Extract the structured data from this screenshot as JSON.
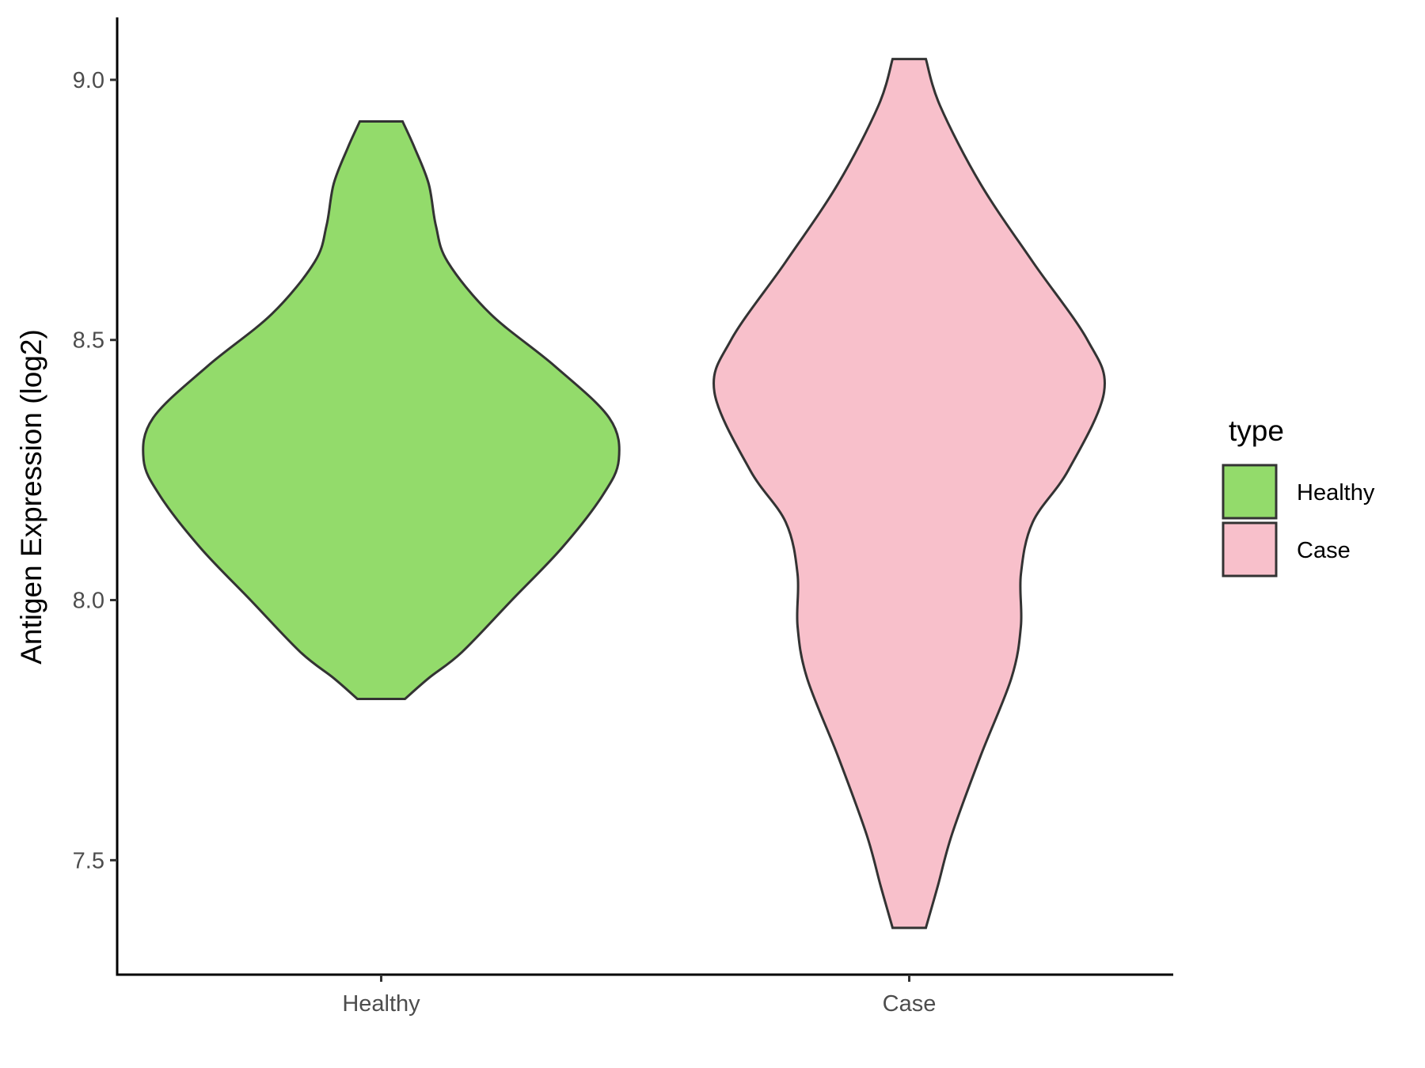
{
  "chart_data": {
    "type": "violin",
    "xlabel": "",
    "ylabel": "Antigen Expression (log2)",
    "categories": [
      "Healthy",
      "Case"
    ],
    "yticks": [
      "7.5",
      "8.0",
      "8.5",
      "9.0"
    ],
    "ylim": [
      7.28,
      9.12
    ],
    "grid": false,
    "legend": {
      "title": "type",
      "position": "right",
      "items": [
        {
          "label": "Healthy",
          "color": "#93DB6B"
        },
        {
          "label": "Case",
          "color": "#F8C0CB"
        }
      ]
    },
    "series": [
      {
        "category": "Healthy",
        "color": "#93DB6B",
        "range": [
          7.81,
          8.92
        ],
        "density": [
          [
            7.81,
            0.1
          ],
          [
            7.85,
            0.2
          ],
          [
            7.9,
            0.34
          ],
          [
            8.0,
            0.55
          ],
          [
            8.1,
            0.76
          ],
          [
            8.2,
            0.93
          ],
          [
            8.27,
            1.0
          ],
          [
            8.35,
            0.96
          ],
          [
            8.45,
            0.73
          ],
          [
            8.55,
            0.46
          ],
          [
            8.65,
            0.28
          ],
          [
            8.72,
            0.23
          ],
          [
            8.8,
            0.2
          ],
          [
            8.87,
            0.14
          ],
          [
            8.92,
            0.09
          ]
        ]
      },
      {
        "category": "Case",
        "color": "#F8C0CB",
        "range": [
          7.37,
          9.04
        ],
        "density": [
          [
            7.37,
            0.07
          ],
          [
            7.45,
            0.12
          ],
          [
            7.55,
            0.18
          ],
          [
            7.7,
            0.3
          ],
          [
            7.85,
            0.43
          ],
          [
            7.95,
            0.47
          ],
          [
            8.05,
            0.47
          ],
          [
            8.15,
            0.52
          ],
          [
            8.25,
            0.67
          ],
          [
            8.4,
            0.82
          ],
          [
            8.5,
            0.75
          ],
          [
            8.65,
            0.52
          ],
          [
            8.8,
            0.3
          ],
          [
            8.95,
            0.13
          ],
          [
            9.04,
            0.07
          ]
        ]
      }
    ]
  }
}
